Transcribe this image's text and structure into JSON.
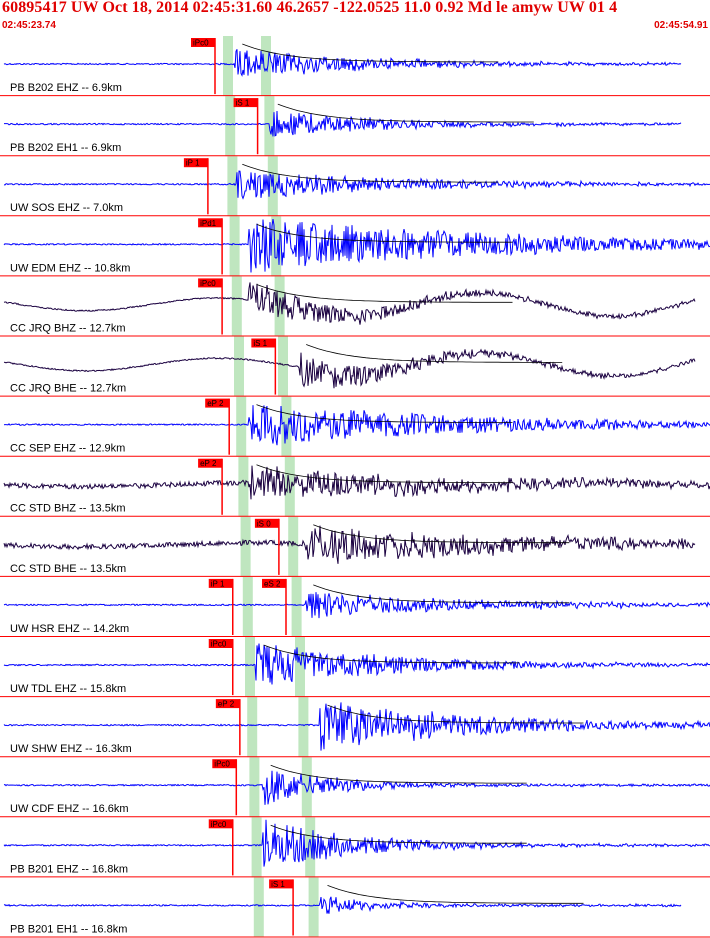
{
  "header": {
    "title": "60895417 UW Oct 18, 2014 02:45:31.60   46.2657 -122.0525 11.0 0.92 Md le amyw UW 01   4",
    "time_start": "02:45:23.74",
    "time_end": "02:45:54.91"
  },
  "colors": {
    "text_red": "#e00000",
    "trace_blue": "#0000ff",
    "trace_dark": "#1a0040",
    "pick_box": "#ff0000",
    "pick_line": "#ff0000",
    "green_band": "#bfe6bf",
    "separator": "#ff0000"
  },
  "traces": [
    {
      "label": "PB B202 EHZ -- 6.9km",
      "color": "blue",
      "kind": "burst",
      "onset": 0.33,
      "amp": 0.55,
      "decay": 0.18,
      "pick": "iPc0",
      "pick_pos": 0.3,
      "end": 0.96
    },
    {
      "label": "PB B202 EH1 -- 6.9km",
      "color": "blue",
      "kind": "burst",
      "onset": 0.38,
      "amp": 0.5,
      "decay": 0.16,
      "pick": "iS 1",
      "pick_pos": 0.36,
      "end": 0.96
    },
    {
      "label": "UW SOS EHZ -- 7.0km",
      "color": "blue",
      "kind": "burst",
      "onset": 0.33,
      "amp": 0.55,
      "decay": 0.22,
      "pick": "iP 1",
      "pick_pos": 0.29,
      "end": 1.0
    },
    {
      "label": "UW EDM EHZ -- 10.8km",
      "color": "blue",
      "kind": "burst",
      "onset": 0.35,
      "amp": 0.95,
      "decay": 0.35,
      "pick": "iPd1",
      "pick_pos": 0.31,
      "end": 1.0
    },
    {
      "label": "CC JRQ BHZ -- 12.7km",
      "color": "dark",
      "kind": "wave",
      "onset": 0.35,
      "amp": 0.55,
      "decay": 0.2,
      "pick": "iPc0",
      "pick_pos": 0.31,
      "end": 0.98
    },
    {
      "label": "CC JRQ BHE -- 12.7km",
      "color": "dark",
      "kind": "wave",
      "onset": 0.42,
      "amp": 0.55,
      "decay": 0.18,
      "pick": "iS 1",
      "pick_pos": 0.385,
      "end": 0.98
    },
    {
      "label": "CC SEP EHZ -- 12.9km",
      "color": "blue",
      "kind": "burst",
      "onset": 0.35,
      "amp": 0.8,
      "decay": 0.3,
      "pick": "eP 2",
      "pick_pos": 0.32,
      "end": 1.0
    },
    {
      "label": "CC STD BHZ -- 13.5km",
      "color": "dark",
      "kind": "noisy",
      "onset": 0.35,
      "amp": 0.6,
      "decay": 0.28,
      "pick": "eP 2",
      "pick_pos": 0.31,
      "end": 1.0
    },
    {
      "label": "CC STD BHE -- 13.5km",
      "color": "dark",
      "kind": "noisy",
      "onset": 0.43,
      "amp": 0.65,
      "decay": 0.3,
      "pick": "iS 0",
      "pick_pos": 0.39,
      "end": 0.98
    },
    {
      "label": "UW HSR EHZ -- 14.2km",
      "color": "blue",
      "kind": "burst",
      "onset": 0.43,
      "amp": 0.5,
      "decay": 0.22,
      "pick": "iP 1",
      "pick_pos": 0.325,
      "pick2": "eS 2",
      "pick2_pos": 0.4,
      "end": 1.0
    },
    {
      "label": "UW TDL EHZ -- 15.8km",
      "color": "blue",
      "kind": "burst",
      "onset": 0.36,
      "amp": 0.75,
      "decay": 0.2,
      "pick": "iPc0",
      "pick_pos": 0.325,
      "end": 1.0
    },
    {
      "label": "UW SHW EHZ -- 16.3km",
      "color": "blue",
      "kind": "burst",
      "onset": 0.45,
      "amp": 0.9,
      "decay": 0.22,
      "pick": "eP 2",
      "pick_pos": 0.335,
      "end": 1.0
    },
    {
      "label": "UW CDF EHZ -- 16.6km",
      "color": "blue",
      "kind": "burst",
      "onset": 0.37,
      "amp": 0.7,
      "decay": 0.1,
      "pick": "iPc0",
      "pick_pos": 0.33,
      "end": 1.0
    },
    {
      "label": "PB B201 EHZ -- 16.8km",
      "color": "blue",
      "kind": "burst",
      "onset": 0.37,
      "amp": 0.85,
      "decay": 0.14,
      "pick": "iPc0",
      "pick_pos": 0.325,
      "end": 1.0
    },
    {
      "label": "PB B201 EH1 -- 16.8km",
      "color": "blue",
      "kind": "burst",
      "onset": 0.45,
      "amp": 0.35,
      "decay": 0.08,
      "pick": "iS 1",
      "pick_pos": 0.41,
      "end": 0.96
    }
  ]
}
